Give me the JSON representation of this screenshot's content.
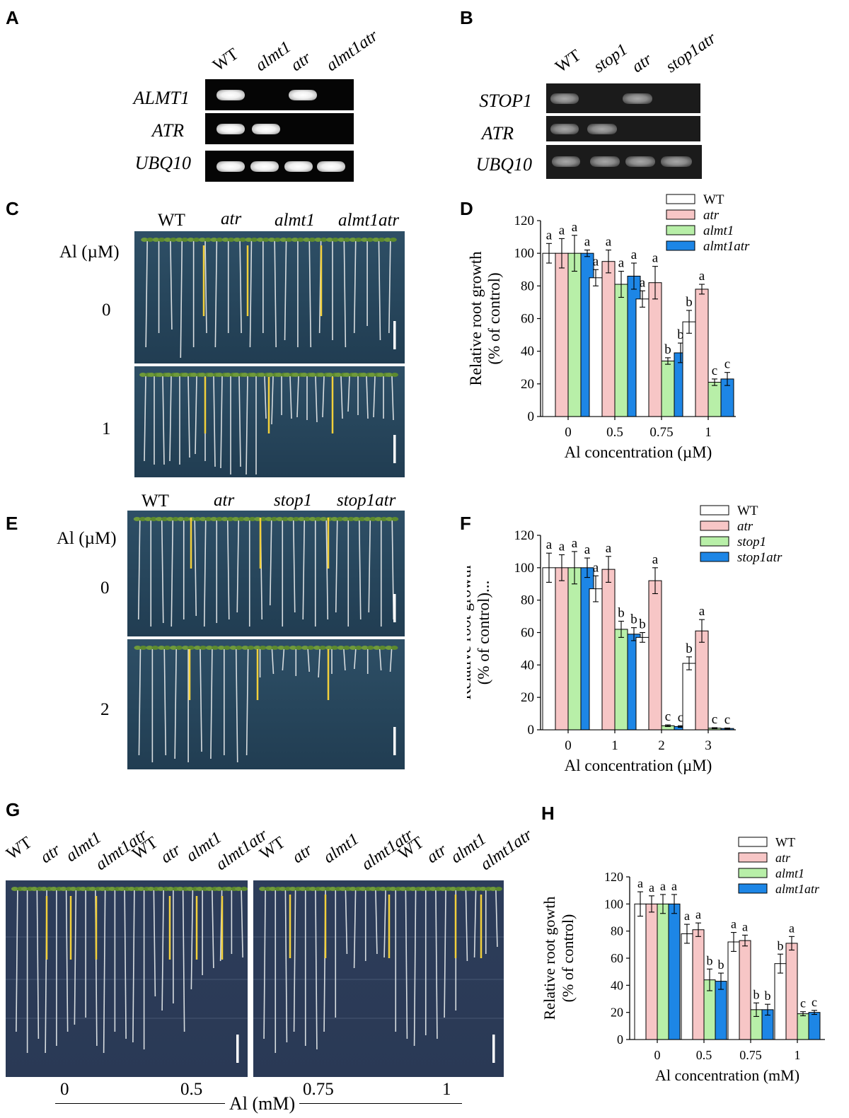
{
  "panel_letters": [
    "A",
    "B",
    "C",
    "D",
    "E",
    "F",
    "G",
    "H"
  ],
  "panelA": {
    "lanes": [
      "WT",
      "almt1",
      "atr",
      "almt1atr"
    ],
    "rows": [
      "ALMT1",
      "ATR",
      "UBQ10"
    ]
  },
  "panelB": {
    "lanes": [
      "WT",
      "stop1",
      "atr",
      "stop1atr"
    ],
    "rows": [
      "STOP1",
      "ATR",
      "UBQ10"
    ]
  },
  "panelC": {
    "genotypes": [
      "WT",
      "atr",
      "almt1",
      "almt1atr"
    ],
    "al_label": "Al (µM)",
    "conditions": [
      "0",
      "1"
    ]
  },
  "panelE": {
    "genotypes": [
      "WT",
      "atr",
      "stop1",
      "stop1atr"
    ],
    "al_label": "Al (µM)",
    "conditions": [
      "0",
      "2"
    ]
  },
  "panelG": {
    "genotypes": [
      "WT",
      "atr",
      "almt1",
      "almt1atr",
      "WT",
      "atr",
      "almt1",
      "almt1atr",
      "WT",
      "atr",
      "almt1",
      "almt1atr",
      "WT",
      "atr",
      "almt1",
      "almt1atr"
    ],
    "concentrations": [
      "0",
      "0.5",
      "0.75",
      "1"
    ],
    "xlabel": "Al (mM)"
  },
  "chart_data": [
    {
      "id": "D",
      "type": "bar",
      "categories": [
        "0",
        "0.5",
        "0.75",
        "1"
      ],
      "series": [
        {
          "name": "WT",
          "color": "#ffffff",
          "values": [
            100,
            85,
            72,
            58
          ],
          "errors": [
            6,
            5,
            5,
            7
          ],
          "letters": [
            "a",
            "a",
            "a",
            "b"
          ]
        },
        {
          "name": "atr",
          "color": "#f7c6c6",
          "values": [
            100,
            95,
            82,
            78
          ],
          "errors": [
            9,
            7,
            10,
            3
          ],
          "letters": [
            "a",
            "a",
            "a",
            "a"
          ]
        },
        {
          "name": "almt1",
          "color": "#b8efa8",
          "values": [
            100,
            81,
            34,
            21
          ],
          "errors": [
            11,
            8,
            2,
            2
          ],
          "letters": [
            "a",
            "a",
            "b",
            "c"
          ]
        },
        {
          "name": "almt1atr",
          "color": "#1d86e6",
          "values": [
            100,
            86,
            39,
            23
          ],
          "errors": [
            2,
            8,
            6,
            4
          ],
          "letters": [
            "a",
            "a",
            "b",
            "c"
          ]
        }
      ],
      "ylabel_line1": "Relative root growth",
      "ylabel_line2": "(% of control)",
      "xlabel": "Al concentration (µM)",
      "ylim": [
        0,
        120
      ],
      "yticks": [
        "0",
        "20",
        "40",
        "60",
        "80",
        "100",
        "120"
      ]
    },
    {
      "id": "F",
      "type": "bar",
      "categories": [
        "0",
        "1",
        "2",
        "3"
      ],
      "series": [
        {
          "name": "WT",
          "color": "#ffffff",
          "values": [
            100,
            87,
            57,
            41
          ],
          "errors": [
            9,
            8,
            3,
            4
          ],
          "letters": [
            "a",
            "a",
            "b",
            "b"
          ]
        },
        {
          "name": "atr",
          "color": "#f7c6c6",
          "values": [
            100,
            99,
            92,
            61
          ],
          "errors": [
            8,
            8,
            8,
            7
          ],
          "letters": [
            "a",
            "a",
            "a",
            "a"
          ]
        },
        {
          "name": "stop1",
          "color": "#b8efa8",
          "values": [
            100,
            62,
            2.5,
            1
          ],
          "errors": [
            10,
            5,
            0.5,
            0.3
          ],
          "letters": [
            "a",
            "b",
            "c",
            "c"
          ]
        },
        {
          "name": "stop1atr",
          "color": "#1d86e6",
          "values": [
            100,
            59,
            2,
            0.8
          ],
          "errors": [
            6,
            4,
            0.5,
            0.3
          ],
          "letters": [
            "a",
            "b",
            "c",
            "c"
          ]
        }
      ],
      "ylabel_line1": "Relative root growth",
      "ylabel_line2": "(% of control)...",
      "xlabel": "Al concentration (µM)",
      "ylim": [
        0,
        120
      ],
      "yticks": [
        "0",
        "20",
        "40",
        "60",
        "80",
        "100",
        "120"
      ]
    },
    {
      "id": "H",
      "type": "bar",
      "categories": [
        "0",
        "0.5",
        "0.75",
        "1"
      ],
      "series": [
        {
          "name": "WT",
          "color": "#ffffff",
          "values": [
            100,
            78,
            72,
            56
          ],
          "errors": [
            9,
            7,
            7,
            7
          ],
          "letters": [
            "a",
            "a",
            "a",
            "b"
          ]
        },
        {
          "name": "atr",
          "color": "#f7c6c6",
          "values": [
            100,
            81,
            73,
            71
          ],
          "errors": [
            6,
            5,
            4,
            5
          ],
          "letters": [
            "a",
            "a",
            "a",
            "a"
          ]
        },
        {
          "name": "almt1",
          "color": "#b8efa8",
          "values": [
            100,
            44,
            22,
            19
          ],
          "errors": [
            7,
            8,
            5,
            1.5
          ],
          "letters": [
            "a",
            "b",
            "b",
            "c"
          ]
        },
        {
          "name": "almt1atr",
          "color": "#1d86e6",
          "values": [
            100,
            43,
            22,
            20
          ],
          "errors": [
            7,
            6,
            4,
            1.5
          ],
          "letters": [
            "a",
            "b",
            "b",
            "c"
          ]
        }
      ],
      "ylabel_line1": "Relative root gowth",
      "ylabel_line2": "(% of control)",
      "xlabel": "Al concentration (mM)",
      "ylim": [
        0,
        120
      ],
      "yticks": [
        "0",
        "20",
        "40",
        "60",
        "80",
        "100",
        "120"
      ]
    }
  ]
}
